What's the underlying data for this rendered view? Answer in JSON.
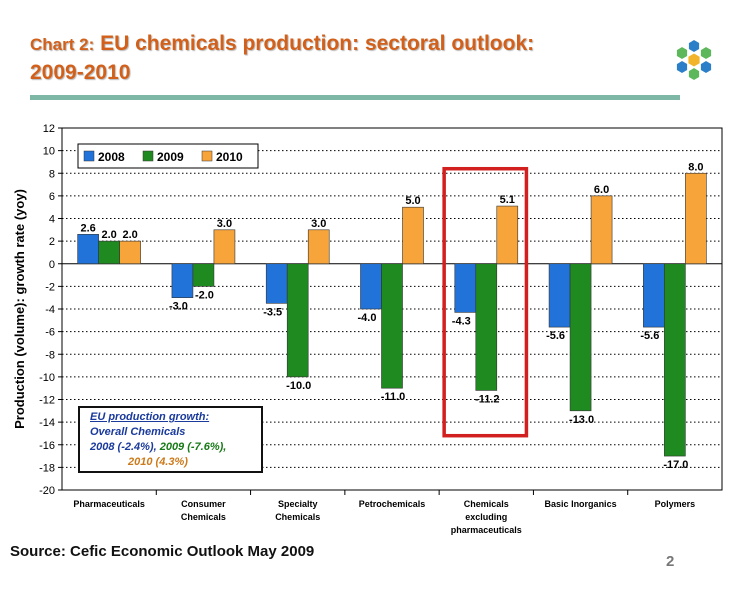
{
  "header": {
    "title_prefix": "Chart 2:",
    "title_rest": " EU chemicals production: sectoral outlook:",
    "title_line2": "2009-2010"
  },
  "logo": {
    "icon": "hexagon-cluster-logo-icon",
    "colors": [
      "#2a7fc8",
      "#5db85b",
      "#f2b42a"
    ]
  },
  "footer": {
    "source": "Source: Cefic Economic Outlook May 2009",
    "page_number": "2"
  },
  "note": {
    "line1": "EU production growth:",
    "line2": "Overall Chemicals",
    "line3a": "2008 (-2.4%), ",
    "line3b": "2009 (-7.6%),",
    "line4": "2010 (4.3%)"
  },
  "chart_data": {
    "type": "bar",
    "title": "",
    "xlabel": "",
    "ylabel": "Production (volume): growth rate (yoy)",
    "ylim": [
      -20,
      12
    ],
    "yticks": [
      12,
      10,
      8,
      6,
      4,
      2,
      0,
      -2,
      -4,
      -6,
      -8,
      -10,
      -12,
      -14,
      -16,
      -18,
      -20
    ],
    "grid": "horizontal-dotted",
    "legend": "top-left",
    "categories": [
      [
        "Pharmaceuticals"
      ],
      [
        "Consumer",
        "Chemicals"
      ],
      [
        "Specialty",
        "Chemicals"
      ],
      [
        "Petrochemicals"
      ],
      [
        "Chemicals",
        "excluding",
        "pharmaceuticals"
      ],
      [
        "Basic Inorganics"
      ],
      [
        "Polymers"
      ]
    ],
    "series": [
      {
        "name": "2008",
        "color": "#2173d9",
        "values": [
          2.6,
          -3.0,
          -3.5,
          -4.0,
          -4.3,
          -5.6,
          -5.6
        ]
      },
      {
        "name": "2009",
        "color": "#1f8a1f",
        "values": [
          2.0,
          -2.0,
          -10.0,
          -11.0,
          -11.2,
          -13.0,
          -17.0
        ]
      },
      {
        "name": "2010",
        "color": "#f7a53b",
        "values": [
          2.0,
          3.0,
          3.0,
          5.0,
          5.1,
          6.0,
          8.0
        ]
      }
    ],
    "highlight": {
      "category_index": 4,
      "color": "#d21f1f"
    }
  }
}
